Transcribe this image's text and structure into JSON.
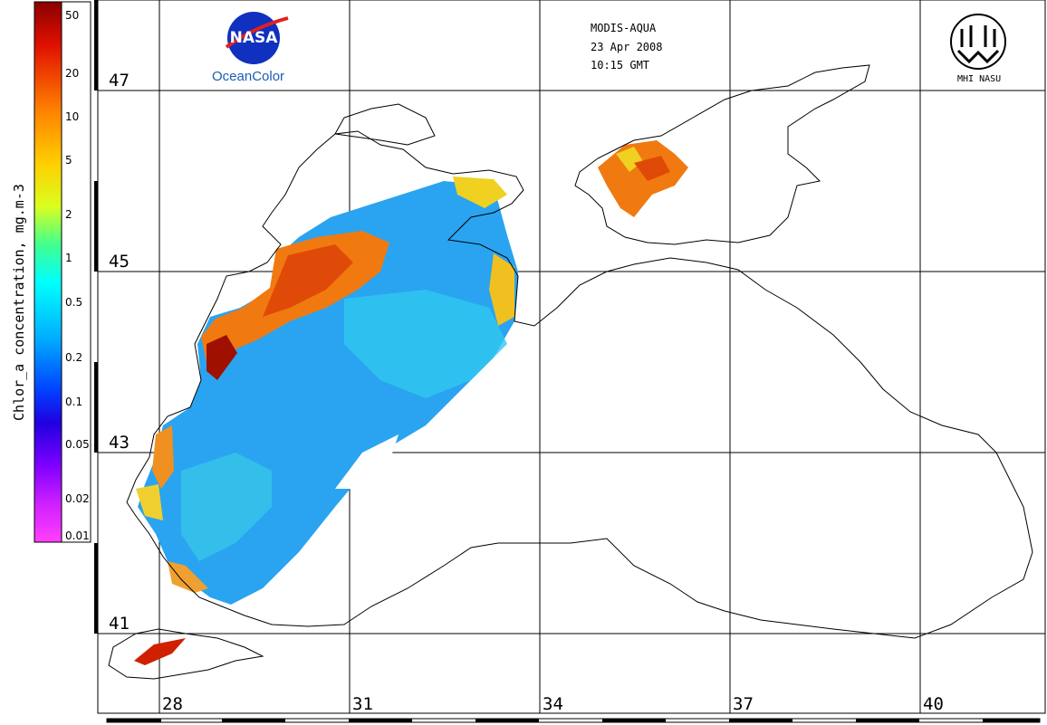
{
  "header": {
    "sensor": "MODIS-AQUA",
    "date": "23 Apr 2008",
    "time": "10:15 GMT"
  },
  "logos": {
    "nasa_brand": "OceanColor",
    "mhi_label": "MHI NASU"
  },
  "colorbar": {
    "title": "Chlor_a concentration, mg.m-3",
    "ticks": [
      "50",
      "20",
      "10",
      "5",
      "2",
      "1",
      "0.5",
      "0.2",
      "0.1",
      "0.05",
      "0.02",
      "0.01"
    ],
    "scale": "log"
  },
  "grid": {
    "latitude_labels": [
      "47",
      "45",
      "43",
      "41"
    ],
    "longitude_labels": [
      "28",
      "31",
      "34",
      "37",
      "40"
    ]
  },
  "colors": {
    "land_outline": "#000000",
    "grid": "#000000",
    "high_chl": "#d02000",
    "mid_chl": "#f0a020",
    "low_chl": "#20a0f0"
  },
  "icons": [
    "nasa-logo-icon",
    "mhi-nasu-logo-icon"
  ]
}
